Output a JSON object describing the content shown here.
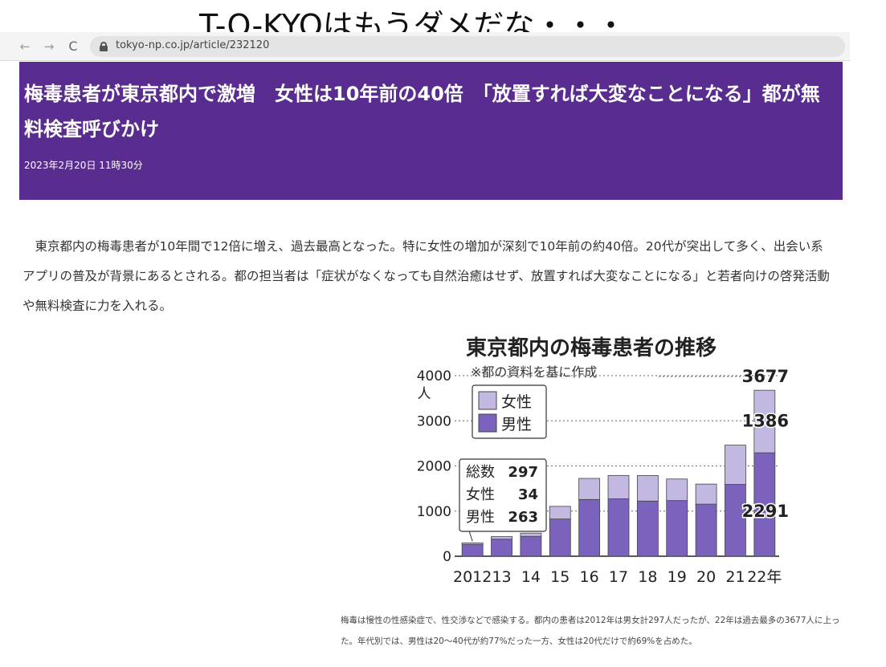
{
  "overlay": {
    "title": "T-O-KYOはもうダメだな・・・"
  },
  "browser": {
    "back_icon": "←",
    "forward_icon": "→",
    "reload_icon": "C",
    "url": "tokyo-np.co.jp/article/232120"
  },
  "article": {
    "headline": "梅毒患者が東京都内で激増　女性は10年前の40倍　「放置すれば大変なことになる」都が無料検査呼びかけ",
    "date": "2023年2月20日 11時30分",
    "body": "東京都内の梅毒患者が10年間で12倍に増え、過去最高となった。特に女性の増加が深刻で10年前の約40倍。20代が突出して多く、出会い系アプリの普及が背景にあるとされる。都の担当者は「症状がなくなっても自然治癒はせず、放置すれば大変なことになる」と若者向けの啓発活動や無料検査に力を入れる。",
    "caption": "梅毒は慢性の性感染症で、性交渉などで感染する。都内の患者は2012年は男女計297人だったが、22年は過去最多の3677人に上った。年代別では、男性は20〜40代が約77%だった一方、女性は20代だけで約69%を占めた。"
  },
  "chart_data": {
    "type": "bar",
    "title": "東京都内の梅毒患者の推移",
    "subtitle": "※都の資料を基に作成",
    "ylabel": "人",
    "ylim": [
      0,
      4000
    ],
    "yticks": [
      0,
      1000,
      2000,
      3000,
      4000
    ],
    "categories": [
      "2012",
      "13",
      "14",
      "15",
      "16",
      "17",
      "18",
      "19",
      "20",
      "21",
      "22年"
    ],
    "stacked": true,
    "series": [
      {
        "name": "男性",
        "color": "#7b63bd",
        "values": [
          263,
          378,
          441,
          825,
          1257,
          1271,
          1222,
          1233,
          1154,
          1591,
          2291
        ]
      },
      {
        "name": "女性",
        "color": "#c3b8e2",
        "values": [
          34,
          58,
          71,
          280,
          467,
          519,
          566,
          478,
          444,
          870,
          1386
        ]
      }
    ],
    "legend": [
      "女性",
      "男性"
    ],
    "legend_position": "top-left",
    "annotation_2012": {
      "total_label": "総数",
      "total": "297",
      "female_label": "女性",
      "female": "34",
      "male_label": "男性",
      "male": "263"
    },
    "annotation_2022": {
      "total": "3677",
      "female": "1386",
      "male": "2291"
    },
    "colors": {
      "male": "#7b63bd",
      "female": "#c3b8e2",
      "outline": "#333333"
    }
  }
}
